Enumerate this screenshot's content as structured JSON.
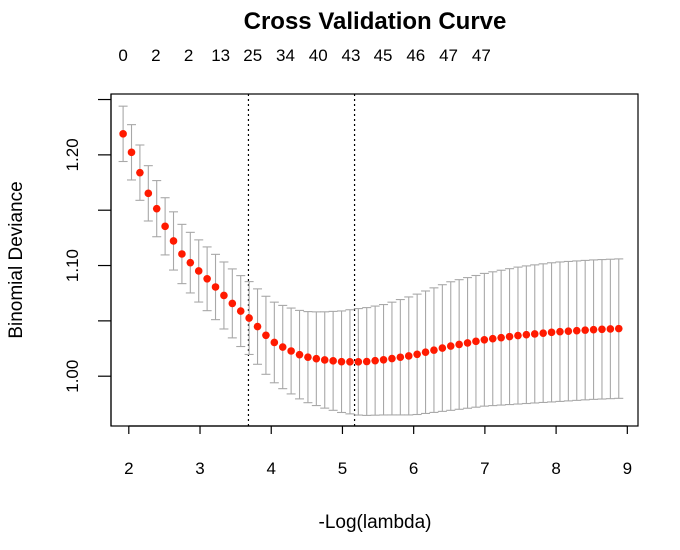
{
  "chart_data": {
    "type": "scatter",
    "title": "Cross Validation Curve",
    "xlabel": "-Log(lambda)",
    "ylabel": "Binomial Deviance",
    "xlim": [
      1.75,
      9.15
    ],
    "ylim": [
      0.955,
      1.255
    ],
    "x_ticks": [
      2,
      3,
      4,
      5,
      6,
      7,
      8,
      9
    ],
    "y_ticks": [
      1.0,
      1.1,
      1.2
    ],
    "y_tick_labels": [
      "1.00",
      "1.10",
      "1.20"
    ],
    "top_ticks": [
      {
        "x": 1.92,
        "label": "0"
      },
      {
        "x": 2.38,
        "label": "2"
      },
      {
        "x": 2.84,
        "label": "2"
      },
      {
        "x": 3.29,
        "label": "13"
      },
      {
        "x": 3.74,
        "label": "25"
      },
      {
        "x": 4.2,
        "label": "34"
      },
      {
        "x": 4.66,
        "label": "40"
      },
      {
        "x": 5.12,
        "label": "43"
      },
      {
        "x": 5.57,
        "label": "45"
      },
      {
        "x": 6.03,
        "label": "46"
      },
      {
        "x": 6.49,
        "label": "47"
      },
      {
        "x": 6.95,
        "label": "47"
      }
    ],
    "vlines": [
      3.68,
      5.17
    ],
    "x_range": [
      1.92,
      8.88
    ],
    "n_points": 60,
    "mean_curve_control": [
      [
        1.92,
        1.219
      ],
      [
        2.02,
        1.205
      ],
      [
        2.12,
        1.19
      ],
      [
        2.25,
        1.168
      ],
      [
        2.38,
        1.153
      ],
      [
        2.55,
        1.13
      ],
      [
        2.75,
        1.11
      ],
      [
        2.95,
        1.097
      ],
      [
        3.15,
        1.085
      ],
      [
        3.35,
        1.072
      ],
      [
        3.55,
        1.06
      ],
      [
        3.7,
        1.052
      ],
      [
        3.85,
        1.042
      ],
      [
        4.0,
        1.032
      ],
      [
        4.2,
        1.025
      ],
      [
        4.45,
        1.018
      ],
      [
        4.7,
        1.015
      ],
      [
        5.0,
        1.013
      ],
      [
        5.3,
        1.013
      ],
      [
        5.6,
        1.015
      ],
      [
        6.0,
        1.019
      ],
      [
        6.5,
        1.027
      ],
      [
        7.0,
        1.033
      ],
      [
        7.5,
        1.037
      ],
      [
        8.0,
        1.04
      ],
      [
        8.5,
        1.042
      ],
      [
        8.88,
        1.043
      ]
    ],
    "half_se_control": [
      [
        1.92,
        0.025
      ],
      [
        2.3,
        0.025
      ],
      [
        2.8,
        0.027
      ],
      [
        3.3,
        0.03
      ],
      [
        3.7,
        0.033
      ],
      [
        4.2,
        0.038
      ],
      [
        4.7,
        0.043
      ],
      [
        5.2,
        0.048
      ],
      [
        5.6,
        0.05
      ],
      [
        6.0,
        0.054
      ],
      [
        6.5,
        0.058
      ],
      [
        7.0,
        0.06
      ],
      [
        7.5,
        0.062
      ],
      [
        8.0,
        0.063
      ],
      [
        8.88,
        0.063
      ]
    ],
    "colors": {
      "points": "#ff1a00",
      "error_bars": "#a8a8a8",
      "vlines": "#000000",
      "axis": "#000000"
    }
  }
}
